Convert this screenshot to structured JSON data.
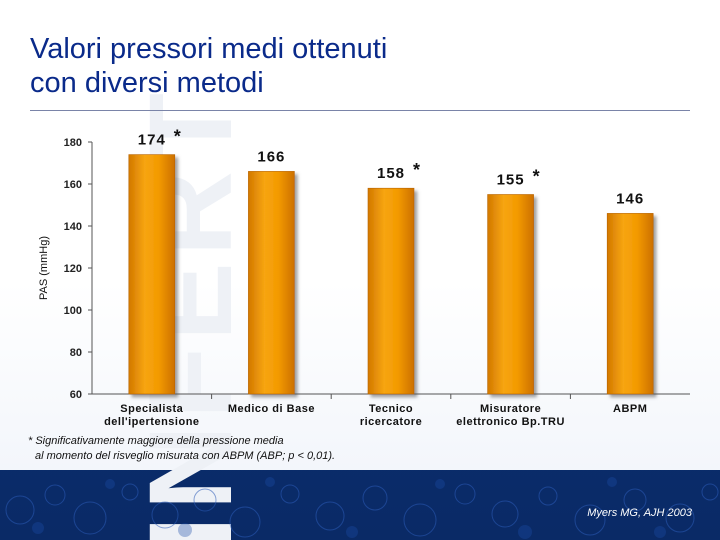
{
  "title_line1": "Valori pressori medi ottenuti",
  "title_line2": "con diversi metodi",
  "footnote_line1": "* Significativamente maggiore della pressione media",
  "footnote_line2": "al momento del risveglio misurata con ABPM (ABP; p < 0,01).",
  "citation": "Myers MG, AJH 2003",
  "colors": {
    "bar": "#f39a00",
    "bar_dark": "#d27800",
    "title": "#0a2a8a",
    "footer_bg": "#0b2f72"
  },
  "chart_data": {
    "type": "bar",
    "title": "",
    "xlabel": "",
    "ylabel": "PAS (mmHg)",
    "ylim": [
      60,
      180
    ],
    "yticks": [
      60,
      80,
      100,
      120,
      140,
      160,
      180
    ],
    "grid": false,
    "categories": [
      [
        "Specialista",
        "dell'ipertensione"
      ],
      [
        "Medico di Base"
      ],
      [
        "Tecnico",
        "ricercatore"
      ],
      [
        "Misuratore",
        "elettronico Bp.TRU"
      ],
      [
        "ABPM"
      ]
    ],
    "values": [
      174,
      166,
      158,
      155,
      146
    ],
    "value_labels": [
      "174",
      "166",
      "158",
      "155",
      "146"
    ],
    "significant": [
      true,
      false,
      true,
      true,
      false
    ]
  }
}
